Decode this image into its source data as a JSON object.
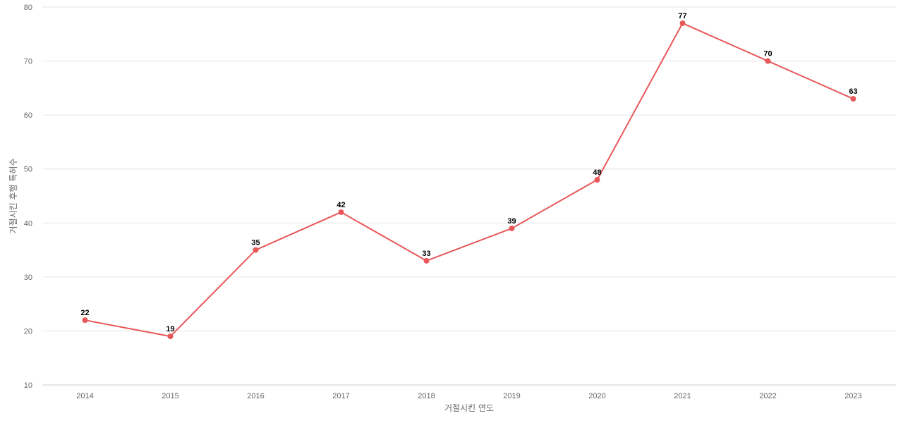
{
  "chart_data": {
    "type": "line",
    "title": "",
    "xlabel": "거절시킨 연도",
    "ylabel": "거절시킨 후행 특허수",
    "categories": [
      "2014",
      "2015",
      "2016",
      "2017",
      "2018",
      "2019",
      "2020",
      "2021",
      "2022",
      "2023"
    ],
    "series": [
      {
        "values": [
          22,
          19,
          35,
          42,
          33,
          39,
          48,
          77,
          70,
          63
        ],
        "color": "#e8585a"
      }
    ],
    "ylim": [
      10,
      80
    ],
    "yticks": [
      10,
      20,
      30,
      40,
      50,
      60,
      70,
      80
    ],
    "grid": true,
    "legend": "none",
    "data_labels": true
  }
}
